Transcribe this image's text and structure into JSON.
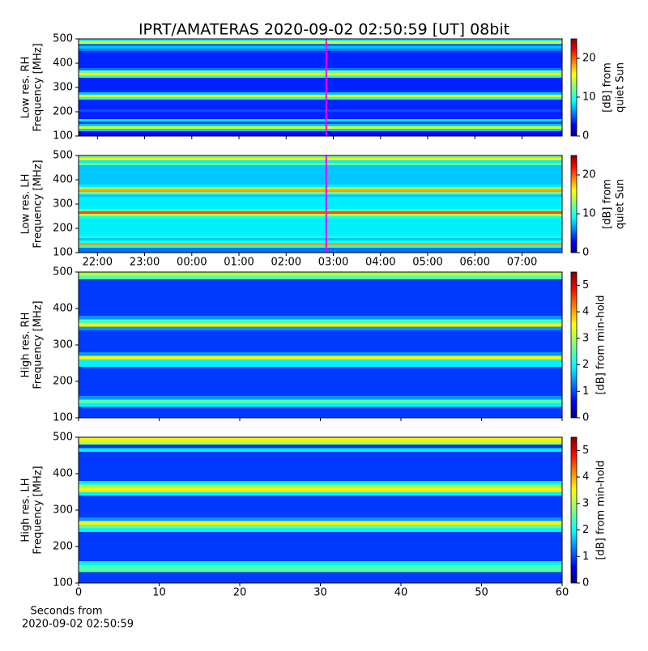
{
  "chart_data": {
    "type": "spectrogram-panels",
    "title": "IPRT/AMATERAS 2020-09-02 02:50:59 [UT]   08bit",
    "panels": [
      {
        "type": "heatmap",
        "ylabel": [
          "Low res. RH",
          "Frequency [MHz]"
        ],
        "ylim": [
          100,
          500
        ],
        "yticks": [
          100,
          200,
          300,
          400,
          500
        ],
        "xlim": [
          21.6,
          31.85
        ],
        "xticks": [
          22,
          23,
          24,
          25,
          26,
          27,
          28,
          29,
          30,
          31
        ],
        "marker": {
          "x": 26.85,
          "color": "#ff00ff"
        },
        "colorbar": {
          "label": [
            "[dB] from",
            "quiet Sun"
          ],
          "lim": [
            0,
            25
          ],
          "ticks": [
            0,
            10,
            20
          ]
        },
        "bins": [
          100,
          110,
          120,
          130,
          140,
          150,
          160,
          170,
          180,
          190,
          200,
          210,
          220,
          230,
          240,
          250,
          260,
          270,
          280,
          290,
          300,
          310,
          320,
          330,
          340,
          350,
          360,
          370,
          380,
          390,
          400,
          410,
          420,
          430,
          440,
          450,
          460,
          470,
          480,
          490,
          500
        ],
        "values": [
          3,
          3,
          8,
          15,
          8,
          5,
          9,
          4,
          4,
          4,
          5,
          4,
          4,
          4,
          4,
          10,
          16,
          8,
          4,
          4,
          4,
          4,
          4,
          4,
          10,
          16,
          12,
          6,
          4,
          4,
          4,
          4,
          4,
          4,
          4,
          6,
          8,
          6,
          15,
          10
        ]
      },
      {
        "type": "heatmap",
        "ylabel": [
          "Low res. LH",
          "Frequency [MHz]"
        ],
        "ylim": [
          100,
          500
        ],
        "yticks": [
          100,
          200,
          300,
          400,
          500
        ],
        "xlim": [
          21.6,
          31.85
        ],
        "xticks": [
          {
            "value": 22,
            "label": "22:00"
          },
          {
            "value": 23,
            "label": "23:00"
          },
          {
            "value": 24,
            "label": "00:00"
          },
          {
            "value": 25,
            "label": "01:00"
          },
          {
            "value": 26,
            "label": "02:00"
          },
          {
            "value": 27,
            "label": "03:00"
          },
          {
            "value": 28,
            "label": "04:00"
          },
          {
            "value": 29,
            "label": "05:00"
          },
          {
            "value": 30,
            "label": "06:00"
          },
          {
            "value": 31,
            "label": "07:00"
          }
        ],
        "marker": {
          "x": 26.85,
          "color": "#ff00ff"
        },
        "colorbar": {
          "label": [
            "[dB] from",
            "quiet Sun"
          ],
          "lim": [
            0,
            25
          ],
          "ticks": [
            0,
            10,
            20
          ]
        },
        "bins": [
          100,
          110,
          120,
          130,
          140,
          150,
          160,
          170,
          180,
          190,
          200,
          210,
          220,
          230,
          240,
          250,
          260,
          270,
          280,
          290,
          300,
          310,
          320,
          330,
          340,
          350,
          360,
          370,
          380,
          390,
          400,
          410,
          420,
          430,
          440,
          450,
          460,
          470,
          480,
          490,
          500
        ],
        "values": [
          6,
          6,
          10,
          18,
          10,
          8,
          10,
          9,
          9,
          9,
          9,
          9,
          9,
          9,
          10,
          14,
          20,
          12,
          9,
          9,
          9,
          9,
          9,
          8,
          12,
          18,
          14,
          9,
          8,
          8,
          8,
          8,
          8,
          8,
          8,
          8,
          12,
          9,
          16,
          12
        ]
      },
      {
        "type": "heatmap",
        "ylabel": [
          "High res. RH",
          "Frequency [MHz]"
        ],
        "ylim": [
          100,
          500
        ],
        "yticks": [
          100,
          200,
          300,
          400,
          500
        ],
        "xlim": [
          0,
          60
        ],
        "xticks": [
          0,
          10,
          20,
          30,
          40,
          50,
          60
        ],
        "colorbar": {
          "label": [
            "[dB] from min-hold"
          ],
          "lim": [
            0,
            5.5
          ],
          "ticks": [
            0,
            1,
            2,
            3,
            4,
            5
          ]
        },
        "bins": [
          100,
          110,
          120,
          130,
          140,
          150,
          160,
          170,
          180,
          190,
          200,
          210,
          220,
          230,
          240,
          250,
          260,
          270,
          280,
          290,
          300,
          310,
          320,
          330,
          340,
          350,
          360,
          370,
          380,
          390,
          400,
          410,
          420,
          430,
          440,
          450,
          460,
          470,
          480,
          490,
          500
        ],
        "values": [
          1,
          1,
          1,
          2,
          2.5,
          1.5,
          1,
          1,
          1,
          1,
          1,
          1,
          1,
          1,
          2,
          2,
          3.5,
          1.5,
          1,
          1,
          1,
          1,
          1,
          1,
          1.5,
          3.5,
          2.5,
          1.5,
          1,
          1,
          1,
          1,
          1,
          1,
          1,
          1,
          1,
          1,
          2.5,
          3
        ]
      },
      {
        "type": "heatmap",
        "ylabel": [
          "High res. LH",
          "Frequency [MHz]"
        ],
        "ylim": [
          100,
          500
        ],
        "yticks": [
          100,
          200,
          300,
          400,
          500
        ],
        "xlim": [
          0,
          60
        ],
        "xticks": [
          0,
          10,
          20,
          30,
          40,
          50,
          60
        ],
        "show_xtick_labels": true,
        "xlabel": [
          "Seconds from",
          "2020-09-02 02:50:59"
        ],
        "colorbar": {
          "label": [
            "[dB] from min-hold"
          ],
          "lim": [
            0,
            5.5
          ],
          "ticks": [
            0,
            1,
            2,
            3,
            4,
            5
          ]
        },
        "bins": [
          100,
          110,
          120,
          130,
          140,
          150,
          160,
          170,
          180,
          190,
          200,
          210,
          220,
          230,
          240,
          250,
          260,
          270,
          280,
          290,
          300,
          310,
          320,
          330,
          340,
          350,
          360,
          370,
          380,
          390,
          400,
          410,
          420,
          430,
          440,
          450,
          460,
          470,
          480,
          490,
          500
        ],
        "values": [
          1,
          1,
          1,
          2.5,
          2.5,
          2,
          1,
          1,
          1,
          1,
          1,
          1,
          1,
          1,
          2,
          2.5,
          3.5,
          1.5,
          1,
          1,
          1,
          1,
          1,
          1,
          2,
          3.5,
          3,
          2,
          1,
          1,
          1,
          1,
          1,
          1,
          1,
          1,
          2,
          1,
          3,
          3.5
        ]
      }
    ]
  }
}
